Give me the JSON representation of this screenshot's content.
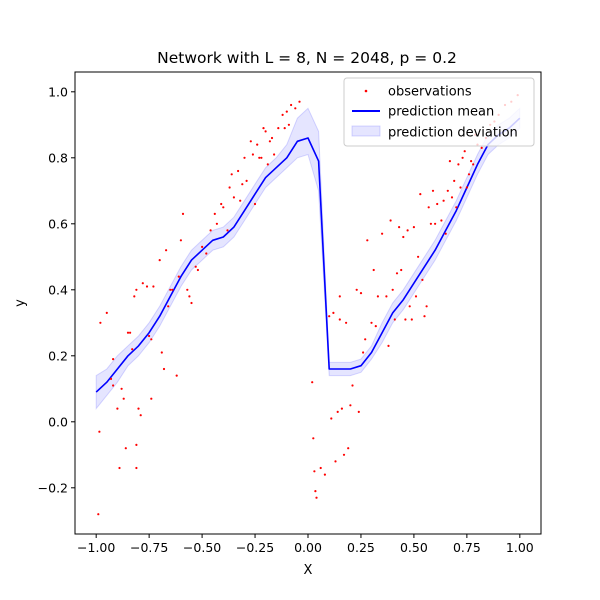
{
  "chart_data": {
    "type": "line",
    "title": "Network with L = 8, N = 2048, p = 0.2",
    "xlabel": "X",
    "ylabel": "y",
    "xlim": [
      -1.1,
      1.1
    ],
    "ylim": [
      -0.34,
      1.06
    ],
    "xticks": [
      -1.0,
      -0.75,
      -0.5,
      -0.25,
      0.0,
      0.25,
      0.5,
      0.75,
      1.0
    ],
    "xtick_labels": [
      "−1.00",
      "−0.75",
      "−0.50",
      "−0.25",
      "0.00",
      "0.25",
      "0.50",
      "0.75",
      "1.00"
    ],
    "yticks": [
      -0.2,
      0.0,
      0.2,
      0.4,
      0.6,
      0.8,
      1.0
    ],
    "ytick_labels": [
      "−0.2",
      "0.0",
      "0.2",
      "0.4",
      "0.6",
      "0.8",
      "1.0"
    ],
    "grid": false,
    "legend_position": "top-right",
    "legend": {
      "observations": "observations",
      "mean": "prediction mean",
      "deviation": "prediction deviation"
    },
    "colors": {
      "observations": "#ff0000",
      "mean": "#0000ff",
      "deviation": "#0000ff"
    },
    "series": [
      {
        "name": "observations",
        "kind": "scatter",
        "points": [
          [
            -0.99,
            -0.28
          ],
          [
            -0.985,
            -0.03
          ],
          [
            -0.98,
            0.3
          ],
          [
            -0.95,
            0.33
          ],
          [
            -0.93,
            0.13
          ],
          [
            -0.92,
            0.19
          ],
          [
            -0.92,
            0.11
          ],
          [
            -0.9,
            0.04
          ],
          [
            -0.89,
            -0.14
          ],
          [
            -0.88,
            0.1
          ],
          [
            -0.87,
            0.07
          ],
          [
            -0.86,
            -0.08
          ],
          [
            -0.85,
            0.27
          ],
          [
            -0.84,
            0.27
          ],
          [
            -0.83,
            0.22
          ],
          [
            -0.82,
            0.38
          ],
          [
            -0.81,
            0.4
          ],
          [
            -0.81,
            -0.07
          ],
          [
            -0.81,
            -0.14
          ],
          [
            -0.8,
            0.04
          ],
          [
            -0.79,
            0.02
          ],
          [
            -0.78,
            0.42
          ],
          [
            -0.76,
            0.41
          ],
          [
            -0.75,
            0.26
          ],
          [
            -0.74,
            0.25
          ],
          [
            -0.74,
            0.07
          ],
          [
            -0.73,
            0.41
          ],
          [
            -0.7,
            0.49
          ],
          [
            -0.69,
            0.21
          ],
          [
            -0.68,
            0.16
          ],
          [
            -0.67,
            0.52
          ],
          [
            -0.66,
            0.35
          ],
          [
            -0.65,
            0.4
          ],
          [
            -0.64,
            0.4
          ],
          [
            -0.62,
            0.14
          ],
          [
            -0.61,
            0.44
          ],
          [
            -0.6,
            0.55
          ],
          [
            -0.59,
            0.63
          ],
          [
            -0.57,
            0.4
          ],
          [
            -0.56,
            0.38
          ],
          [
            -0.55,
            0.36
          ],
          [
            -0.53,
            0.47
          ],
          [
            -0.52,
            0.46
          ],
          [
            -0.5,
            0.53
          ],
          [
            -0.48,
            0.51
          ],
          [
            -0.46,
            0.58
          ],
          [
            -0.44,
            0.63
          ],
          [
            -0.43,
            0.6
          ],
          [
            -0.41,
            0.66
          ],
          [
            -0.4,
            0.65
          ],
          [
            -0.38,
            0.58
          ],
          [
            -0.37,
            0.71
          ],
          [
            -0.36,
            0.75
          ],
          [
            -0.35,
            0.68
          ],
          [
            -0.33,
            0.76
          ],
          [
            -0.32,
            0.67
          ],
          [
            -0.31,
            0.72
          ],
          [
            -0.3,
            0.8
          ],
          [
            -0.29,
            0.73
          ],
          [
            -0.27,
            0.85
          ],
          [
            -0.26,
            0.81
          ],
          [
            -0.25,
            0.66
          ],
          [
            -0.24,
            0.84
          ],
          [
            -0.23,
            0.8
          ],
          [
            -0.22,
            0.8
          ],
          [
            -0.21,
            0.89
          ],
          [
            -0.2,
            0.88
          ],
          [
            -0.19,
            0.78
          ],
          [
            -0.18,
            0.85
          ],
          [
            -0.17,
            0.86
          ],
          [
            -0.16,
            0.81
          ],
          [
            -0.14,
            0.89
          ],
          [
            -0.12,
            0.93
          ],
          [
            -0.11,
            0.89
          ],
          [
            -0.1,
            0.94
          ],
          [
            -0.09,
            0.9
          ],
          [
            -0.08,
            0.96
          ],
          [
            -0.06,
            0.95
          ],
          [
            -0.04,
            0.97
          ],
          [
            0.02,
            0.12
          ],
          [
            0.025,
            -0.05
          ],
          [
            0.03,
            -0.15
          ],
          [
            0.035,
            -0.21
          ],
          [
            0.04,
            -0.23
          ],
          [
            0.06,
            -0.14
          ],
          [
            0.08,
            -0.16
          ],
          [
            0.1,
            0.32
          ],
          [
            0.11,
            0.01
          ],
          [
            0.12,
            0.33
          ],
          [
            0.13,
            -0.12
          ],
          [
            0.14,
            0.03
          ],
          [
            0.15,
            0.31
          ],
          [
            0.15,
            0.38
          ],
          [
            0.16,
            0.04
          ],
          [
            0.17,
            -0.1
          ],
          [
            0.18,
            0.3
          ],
          [
            0.19,
            -0.08
          ],
          [
            0.2,
            0.05
          ],
          [
            0.21,
            0.11
          ],
          [
            0.23,
            0.4
          ],
          [
            0.24,
            0.03
          ],
          [
            0.25,
            0.39
          ],
          [
            0.26,
            0.21
          ],
          [
            0.27,
            0.25
          ],
          [
            0.28,
            0.55
          ],
          [
            0.3,
            0.3
          ],
          [
            0.31,
            0.46
          ],
          [
            0.32,
            0.29
          ],
          [
            0.33,
            0.38
          ],
          [
            0.35,
            0.57
          ],
          [
            0.37,
            0.38
          ],
          [
            0.38,
            0.23
          ],
          [
            0.39,
            0.61
          ],
          [
            0.4,
            0.4
          ],
          [
            0.41,
            0.31
          ],
          [
            0.42,
            0.45
          ],
          [
            0.43,
            0.59
          ],
          [
            0.44,
            0.46
          ],
          [
            0.45,
            0.56
          ],
          [
            0.46,
            0.31
          ],
          [
            0.47,
            0.58
          ],
          [
            0.48,
            0.35
          ],
          [
            0.49,
            0.31
          ],
          [
            0.5,
            0.59
          ],
          [
            0.51,
            0.38
          ],
          [
            0.52,
            0.5
          ],
          [
            0.53,
            0.69
          ],
          [
            0.54,
            0.43
          ],
          [
            0.55,
            0.32
          ],
          [
            0.56,
            0.35
          ],
          [
            0.57,
            0.65
          ],
          [
            0.58,
            0.6
          ],
          [
            0.59,
            0.7
          ],
          [
            0.6,
            0.6
          ],
          [
            0.61,
            0.66
          ],
          [
            0.63,
            0.61
          ],
          [
            0.64,
            0.67
          ],
          [
            0.65,
            0.57
          ],
          [
            0.66,
            0.7
          ],
          [
            0.67,
            0.79
          ],
          [
            0.68,
            0.68
          ],
          [
            0.69,
            0.73
          ],
          [
            0.7,
            0.65
          ],
          [
            0.71,
            0.78
          ],
          [
            0.72,
            0.71
          ],
          [
            0.73,
            0.8
          ],
          [
            0.74,
            0.82
          ],
          [
            0.75,
            0.71
          ],
          [
            0.76,
            0.75
          ],
          [
            0.77,
            0.79
          ],
          [
            0.78,
            0.78
          ],
          [
            0.79,
            0.87
          ],
          [
            0.8,
            0.84
          ],
          [
            0.82,
            0.83
          ],
          [
            0.84,
            0.86
          ],
          [
            0.86,
            0.9
          ],
          [
            0.88,
            0.91
          ],
          [
            0.9,
            0.93
          ],
          [
            0.93,
            0.96
          ],
          [
            0.96,
            0.97
          ],
          [
            0.99,
            0.99
          ]
        ]
      },
      {
        "name": "prediction mean",
        "kind": "line",
        "x": [
          -1.0,
          -0.95,
          -0.9,
          -0.85,
          -0.8,
          -0.75,
          -0.7,
          -0.65,
          -0.6,
          -0.55,
          -0.5,
          -0.45,
          -0.4,
          -0.35,
          -0.3,
          -0.25,
          -0.2,
          -0.15,
          -0.1,
          -0.05,
          0.0,
          0.05,
          0.1,
          0.15,
          0.2,
          0.25,
          0.3,
          0.35,
          0.4,
          0.45,
          0.5,
          0.55,
          0.6,
          0.65,
          0.7,
          0.75,
          0.8,
          0.85,
          0.9,
          0.95,
          1.0
        ],
        "y": [
          0.09,
          0.12,
          0.16,
          0.2,
          0.23,
          0.27,
          0.32,
          0.38,
          0.44,
          0.49,
          0.52,
          0.55,
          0.56,
          0.59,
          0.64,
          0.69,
          0.74,
          0.77,
          0.8,
          0.85,
          0.86,
          0.79,
          0.16,
          0.16,
          0.16,
          0.17,
          0.21,
          0.27,
          0.33,
          0.37,
          0.42,
          0.47,
          0.52,
          0.58,
          0.64,
          0.71,
          0.78,
          0.84,
          0.87,
          0.89,
          0.92
        ]
      },
      {
        "name": "prediction deviation",
        "kind": "band",
        "x": [
          -1.0,
          -0.95,
          -0.9,
          -0.85,
          -0.8,
          -0.75,
          -0.7,
          -0.65,
          -0.6,
          -0.55,
          -0.5,
          -0.45,
          -0.4,
          -0.35,
          -0.3,
          -0.25,
          -0.2,
          -0.15,
          -0.1,
          -0.05,
          0.0,
          0.05,
          0.1,
          0.15,
          0.2,
          0.25,
          0.3,
          0.35,
          0.4,
          0.45,
          0.5,
          0.55,
          0.6,
          0.65,
          0.7,
          0.75,
          0.8,
          0.85,
          0.9,
          0.95,
          1.0
        ],
        "lower": [
          0.04,
          0.08,
          0.12,
          0.17,
          0.2,
          0.24,
          0.29,
          0.35,
          0.41,
          0.46,
          0.49,
          0.52,
          0.53,
          0.56,
          0.61,
          0.66,
          0.71,
          0.74,
          0.77,
          0.8,
          0.81,
          0.7,
          0.14,
          0.14,
          0.14,
          0.15,
          0.19,
          0.24,
          0.3,
          0.34,
          0.39,
          0.44,
          0.49,
          0.55,
          0.61,
          0.68,
          0.75,
          0.81,
          0.84,
          0.86,
          0.89
        ],
        "upper": [
          0.14,
          0.16,
          0.2,
          0.23,
          0.26,
          0.3,
          0.35,
          0.41,
          0.47,
          0.52,
          0.55,
          0.58,
          0.59,
          0.62,
          0.67,
          0.72,
          0.77,
          0.8,
          0.84,
          0.92,
          0.95,
          0.88,
          0.18,
          0.18,
          0.18,
          0.19,
          0.23,
          0.3,
          0.36,
          0.4,
          0.45,
          0.5,
          0.55,
          0.61,
          0.67,
          0.74,
          0.81,
          0.87,
          0.9,
          0.92,
          0.95
        ]
      }
    ]
  }
}
